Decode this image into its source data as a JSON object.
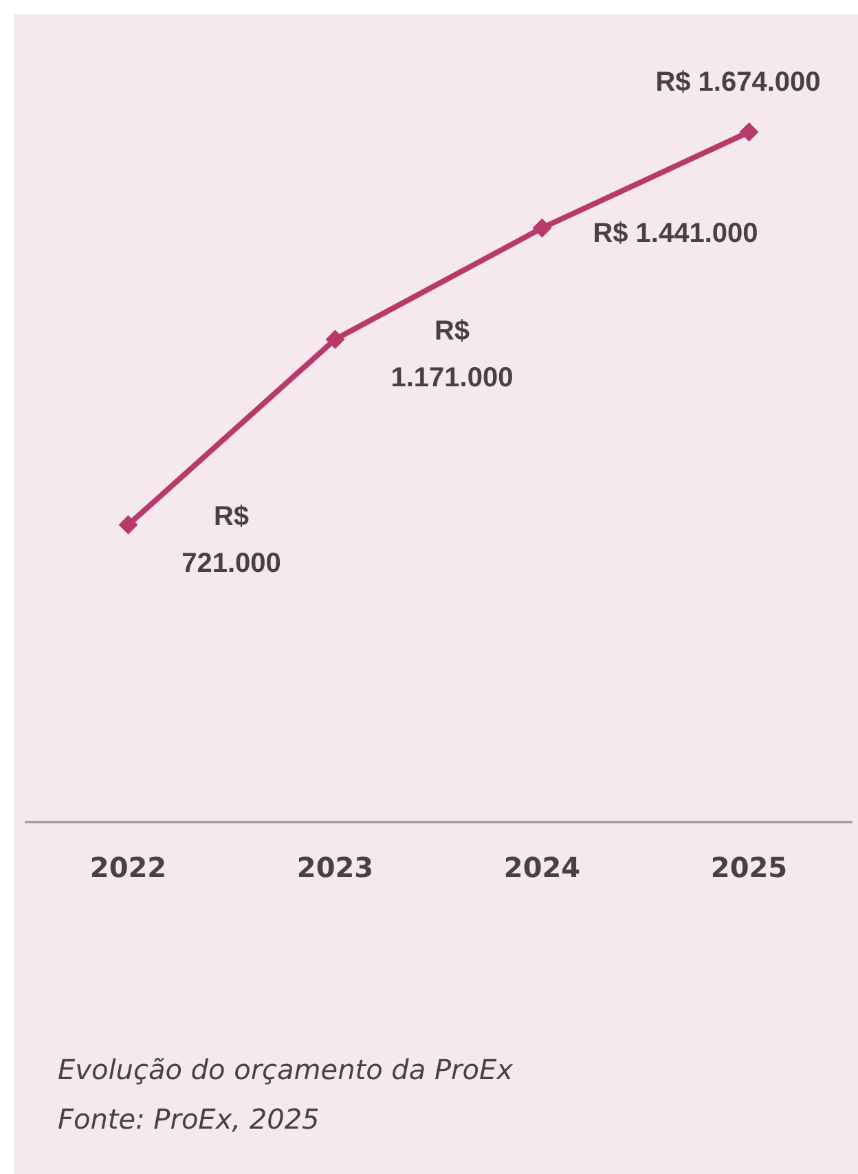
{
  "chart_data": {
    "type": "line",
    "categories": [
      "2022",
      "2023",
      "2024",
      "2025"
    ],
    "series": [
      {
        "color": "#b83a6a",
        "values": [
          721000,
          1171000,
          1441000,
          1674000
        ],
        "value_labels": [
          "R$ 721.000",
          "R$ 1.171.000",
          "R$ 1.441.000",
          "R$ 1.674.000"
        ]
      }
    ],
    "marker": "diamond",
    "line_style": "solid",
    "grid": false,
    "legend": false,
    "tick_labels": "x",
    "annotations": [
      "Evolução do orçamento da ProEx",
      "Fonte: ProEx, 2025"
    ]
  }
}
